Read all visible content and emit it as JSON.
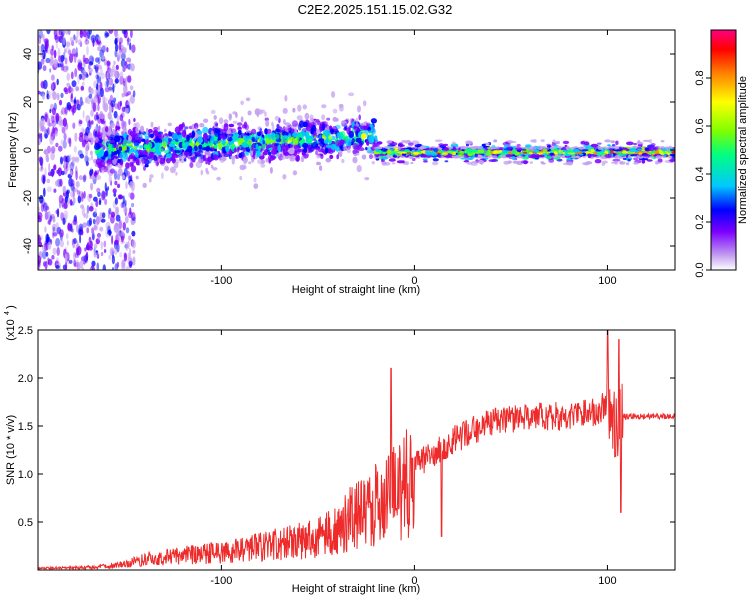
{
  "title": "C2E2.2025.151.15.02.G32",
  "chart_data": [
    {
      "type": "heatmap",
      "xlabel": "Height of straight line (km)",
      "ylabel": "Frequency (Hz)",
      "xlim": [
        -195,
        135
      ],
      "ylim": [
        -50,
        50
      ],
      "xticks": [
        "-100",
        "0",
        "100"
      ],
      "xtick_values": [
        -100,
        0,
        100
      ],
      "yticks": [
        "-40",
        "-20",
        "0",
        "20",
        "40"
      ],
      "ytick_values": [
        -40,
        -20,
        0,
        20,
        40
      ],
      "colorbar": {
        "label": "Normalized spectral amplitude",
        "ticks": [
          "0.0",
          "0.2",
          "0.4",
          "0.6",
          "0.8"
        ],
        "tick_values": [
          0.0,
          0.2,
          0.4,
          0.6,
          0.8
        ],
        "range": [
          0,
          1
        ],
        "colors": [
          "#ffffff",
          "#c4a0f0",
          "#7b00ff",
          "#0000ff",
          "#00c8ff",
          "#00ff80",
          "#80ff00",
          "#ffff00",
          "#ff8000",
          "#ff0000",
          "#ff0080"
        ]
      },
      "regions": [
        {
          "x_range": [
            -195,
            -145
          ],
          "freq_spread": 50,
          "amplitude": 0.2
        },
        {
          "x_range": [
            -165,
            -20
          ],
          "freq_center": 2,
          "freq_spread": 6,
          "amplitude": 0.45
        },
        {
          "x_range": [
            -20,
            135
          ],
          "freq_center": -1,
          "freq_spread": 2,
          "amplitude": 0.85
        }
      ]
    },
    {
      "type": "line",
      "xlabel": "Height of straight line (km)",
      "ylabel": "SNR (10 * v/v)",
      "y_scale_note": "(x10^4)",
      "xlim": [
        -195,
        135
      ],
      "ylim": [
        0,
        2.5
      ],
      "xticks": [
        "-100",
        "0",
        "100"
      ],
      "xtick_values": [
        -100,
        0,
        100
      ],
      "yticks": [
        "0.5",
        "1.0",
        "1.5",
        "2.0",
        "2.5"
      ],
      "ytick_values": [
        0.5,
        1.0,
        1.5,
        2.0,
        2.5
      ],
      "color": "#ee2a2a",
      "series": [
        {
          "x": [
            -195,
            -170,
            -155,
            -145,
            -135,
            -120,
            -100,
            -80,
            -60,
            -45,
            -35,
            -25,
            -15,
            -10,
            -5,
            0,
            10,
            20,
            30,
            40,
            60,
            80,
            95,
            100,
            105,
            107,
            110,
            120,
            135
          ],
          "y": [
            0.02,
            0.03,
            0.05,
            0.1,
            0.15,
            0.18,
            0.22,
            0.28,
            0.35,
            0.45,
            0.6,
            0.75,
            0.9,
            0.95,
            1.05,
            1.1,
            1.2,
            1.35,
            1.45,
            1.55,
            1.6,
            1.6,
            1.65,
            1.75,
            1.4,
            1.6,
            1.6,
            1.6,
            1.6
          ]
        }
      ],
      "annotations": [
        {
          "x": -12,
          "y": 2.1
        },
        {
          "x": 100,
          "y": 2.5
        },
        {
          "x": 106,
          "y": 2.4
        },
        {
          "x": 107,
          "y": 0.6
        },
        {
          "x": 14,
          "y": 0.35
        }
      ]
    }
  ]
}
